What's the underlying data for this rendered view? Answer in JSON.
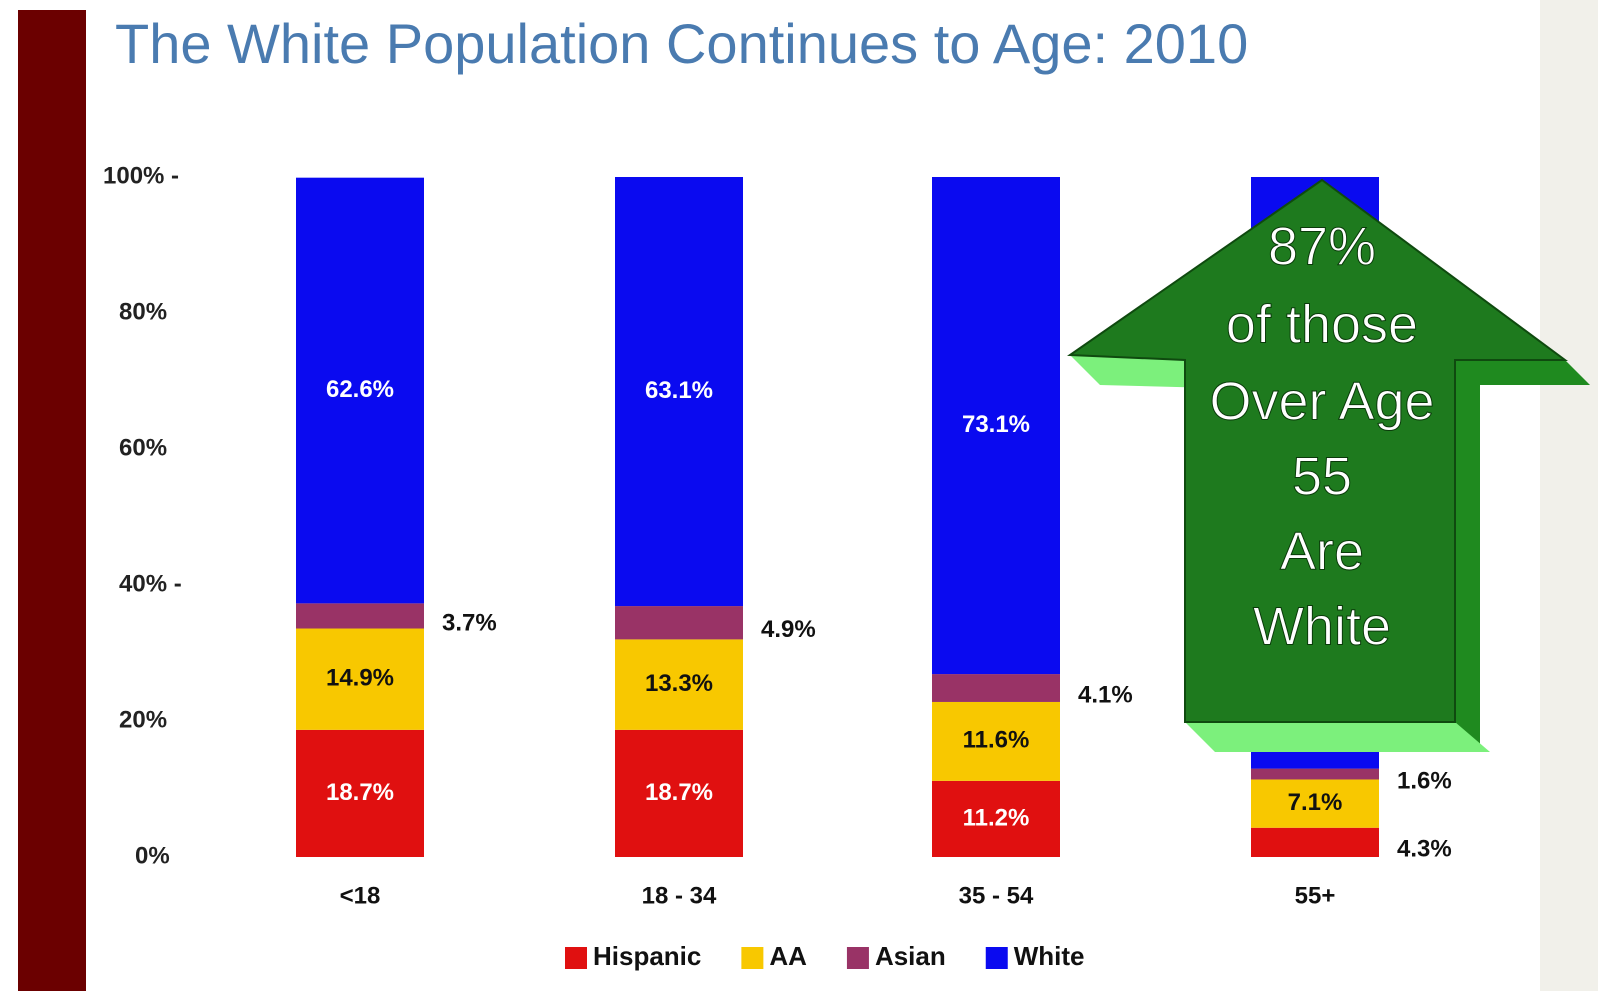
{
  "chart_data": {
    "type": "stacked-bar",
    "title": "The White Population Continues to Age: 2010",
    "categories": [
      "<18",
      "18 - 34",
      "35 - 54",
      "55+"
    ],
    "series": [
      {
        "name": "Hispanic",
        "color": "#e01010",
        "values": [
          18.7,
          18.7,
          11.2,
          4.3
        ],
        "value_labels": [
          "18.7%",
          "18.7%",
          "11.2%",
          "4.3%"
        ]
      },
      {
        "name": "AA",
        "color": "#f8c800",
        "values": [
          14.9,
          13.3,
          11.6,
          7.1
        ],
        "value_labels": [
          "14.9%",
          "13.3%",
          "11.6%",
          "7.1%"
        ]
      },
      {
        "name": "Asian",
        "color": "#993366",
        "values": [
          3.7,
          4.9,
          4.1,
          1.6
        ],
        "value_labels": [
          "3.7%",
          "4.9%",
          "4.1%",
          "1.6%"
        ]
      },
      {
        "name": "White",
        "color": "#0a0af0",
        "values": [
          62.6,
          63.1,
          73.1,
          87
        ],
        "value_labels": [
          "62.6%",
          "63.1%",
          "73.1%",
          null
        ]
      }
    ],
    "ylim": [
      0,
      100
    ],
    "yticks": [
      {
        "value": 0,
        "label": "0%"
      },
      {
        "value": 20,
        "label": "20%"
      },
      {
        "value": 40,
        "label": "40% -"
      },
      {
        "value": 60,
        "label": "60%"
      },
      {
        "value": 80,
        "label": "80%"
      },
      {
        "value": 100,
        "label": "100% -"
      }
    ],
    "annotation": {
      "lines": [
        "87%",
        "of those",
        "Over Age",
        "55",
        "Are",
        "White"
      ]
    }
  }
}
